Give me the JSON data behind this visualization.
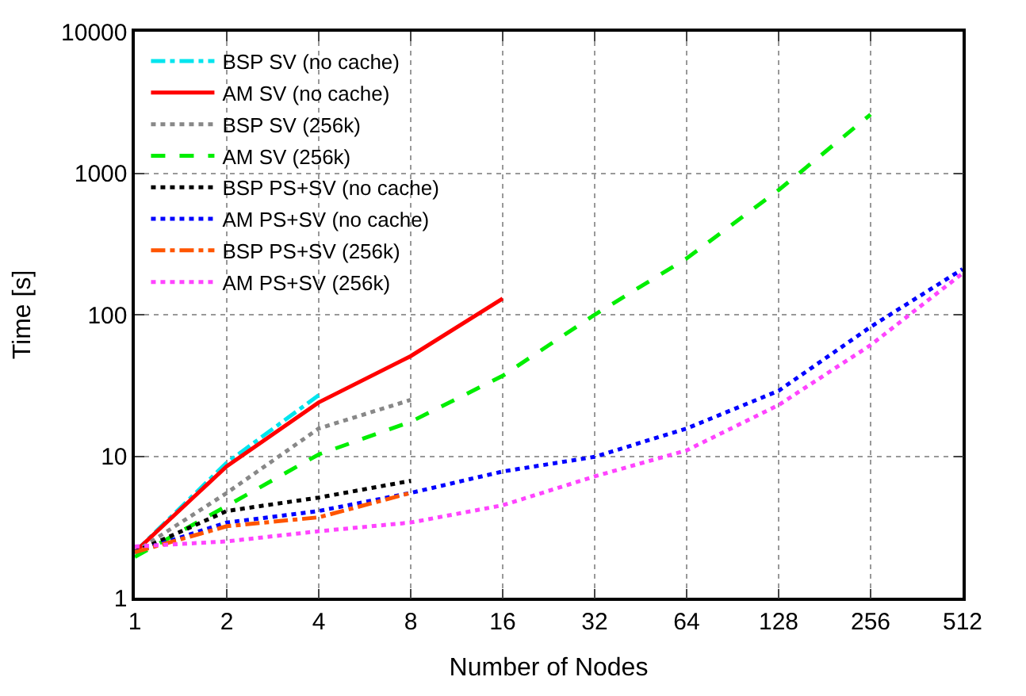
{
  "chart_data": {
    "type": "line",
    "xlabel": "Number of Nodes",
    "ylabel": "Time [s]",
    "log": "xy",
    "xlim": [
      1,
      512
    ],
    "xticks": [
      1,
      2,
      4,
      8,
      16,
      32,
      64,
      128,
      256,
      512
    ],
    "ylim": [
      1,
      10000
    ],
    "yticks": [
      1,
      10,
      100,
      1000,
      10000
    ],
    "grid": true,
    "legend": "top left",
    "marker": "none",
    "series": [
      {
        "name": "BSP SV (no cache)",
        "color": "#00e5ee",
        "line_style": "dashdot",
        "x": [
          1,
          2,
          4
        ],
        "values": [
          2.1,
          9,
          27
        ]
      },
      {
        "name": "AM SV (no cache)",
        "color": "#ff0000",
        "line_style": "solid",
        "x": [
          1,
          2,
          4,
          8,
          16
        ],
        "values": [
          2.1,
          8.5,
          24,
          51,
          130
        ]
      },
      {
        "name": "BSP SV (256k)",
        "color": "#888888",
        "line_style": "dotted",
        "x": [
          1,
          2,
          4,
          8
        ],
        "values": [
          2.1,
          5.5,
          15.7,
          25
        ]
      },
      {
        "name": "AM SV (256k)",
        "color": "#00ee00",
        "line_style": "dashed",
        "x": [
          1,
          2,
          4,
          8,
          16,
          32,
          64,
          128,
          256
        ],
        "values": [
          1.94,
          4.45,
          10.3,
          17.5,
          37,
          100,
          250,
          760,
          2600
        ]
      },
      {
        "name": "BSP PS+SV (no cache)",
        "color": "#000000",
        "line_style": "dotted",
        "x": [
          1,
          2,
          4,
          8
        ],
        "values": [
          2.1,
          4.1,
          5.1,
          6.7
        ]
      },
      {
        "name": "AM PS+SV (no cache)",
        "color": "#0000ff",
        "line_style": "dotted",
        "x": [
          1,
          2,
          4,
          8,
          16,
          32,
          64,
          128,
          256,
          512
        ],
        "values": [
          2.1,
          3.4,
          4.1,
          5.5,
          7.8,
          9.9,
          15.7,
          29,
          82,
          210
        ]
      },
      {
        "name": "BSP PS+SV (256k)",
        "color": "#ff5500",
        "line_style": "dashdot",
        "x": [
          1,
          2,
          4,
          8
        ],
        "values": [
          2.1,
          3.2,
          3.7,
          5.5
        ]
      },
      {
        "name": "AM PS+SV (256k)",
        "color": "#ff44ff",
        "line_style": "dotted",
        "x": [
          1,
          2,
          4,
          8,
          16,
          32,
          64,
          128,
          256,
          512
        ],
        "values": [
          2.3,
          2.5,
          2.95,
          3.4,
          4.5,
          7.2,
          11,
          23,
          61,
          196
        ]
      }
    ]
  }
}
